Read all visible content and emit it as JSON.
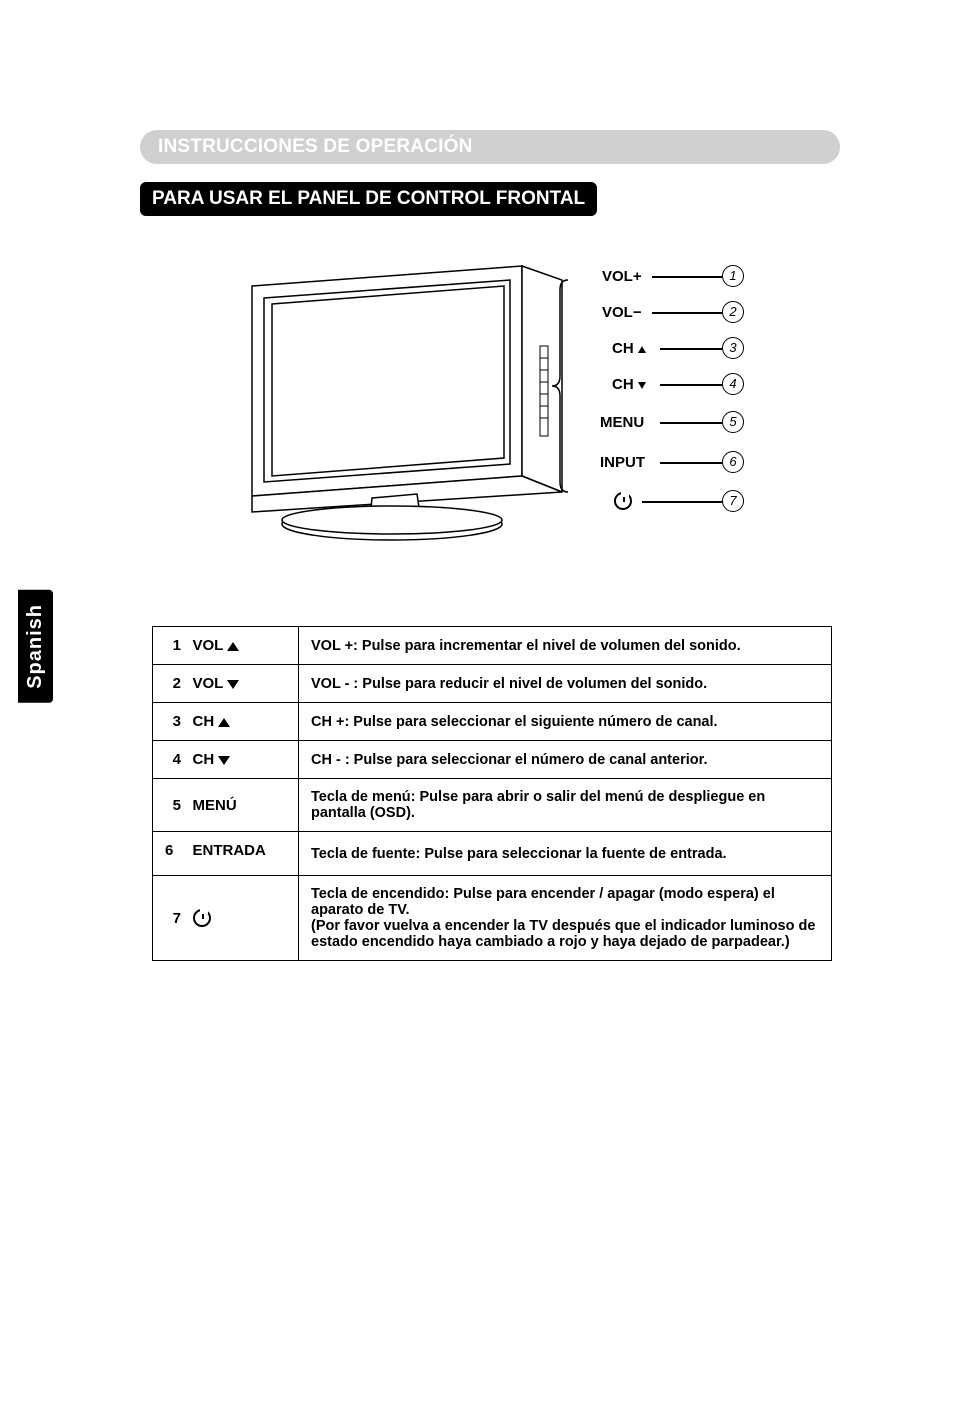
{
  "side_tab": "Spanish",
  "section_title": "INSTRUCCIONES DE OPERACIÓN",
  "sub_title": "PARA USAR EL PANEL DE CONTROL FRONTAL",
  "diagram": {
    "labels": [
      "VOL+",
      "VOL−",
      "CH",
      "CH",
      "MENU",
      "INPUT"
    ],
    "circle_numbers": [
      "1",
      "2",
      "3",
      "4",
      "5",
      "6",
      "7"
    ]
  },
  "table": {
    "rows": [
      {
        "num": "1",
        "label": "VOL",
        "arrow": "up",
        "desc": "VOL +: Pulse para incrementar el nivel de volumen del sonido."
      },
      {
        "num": "2",
        "label": "VOL",
        "arrow": "down",
        "desc": "VOL - : Pulse para reducir el nivel de volumen del sonido."
      },
      {
        "num": "3",
        "label": "CH",
        "arrow": "up",
        "desc": "CH +: Pulse para seleccionar el siguiente número de canal."
      },
      {
        "num": "4",
        "label": "CH",
        "arrow": "down",
        "desc": "CH - : Pulse para seleccionar el número de canal anterior."
      },
      {
        "num": "5",
        "label": "MENÚ",
        "arrow": null,
        "desc": "Tecla de menú: Pulse para abrir o salir del menú de despliegue en pantalla (OSD)."
      },
      {
        "num": "6",
        "label": "ENTRADA",
        "arrow": null,
        "desc": "Tecla de fuente: Pulse para seleccionar la fuente de entrada."
      },
      {
        "num": "7",
        "label": "__POWER__",
        "arrow": null,
        "desc": "Tecla de encendido: Pulse para encender / apagar (modo espera) el aparato de TV.\n(Por favor vuelva a encender la TV después que el indicador luminoso de estado encendido haya cambiado a rojo y haya dejado de parpadear.)"
      }
    ]
  },
  "colors": {
    "header_bg": "#d0d0d0",
    "header_text": "#ffffff",
    "subheader_bg": "#000000",
    "subheader_text": "#ffffff",
    "border": "#000000",
    "page_bg": "#ffffff"
  }
}
